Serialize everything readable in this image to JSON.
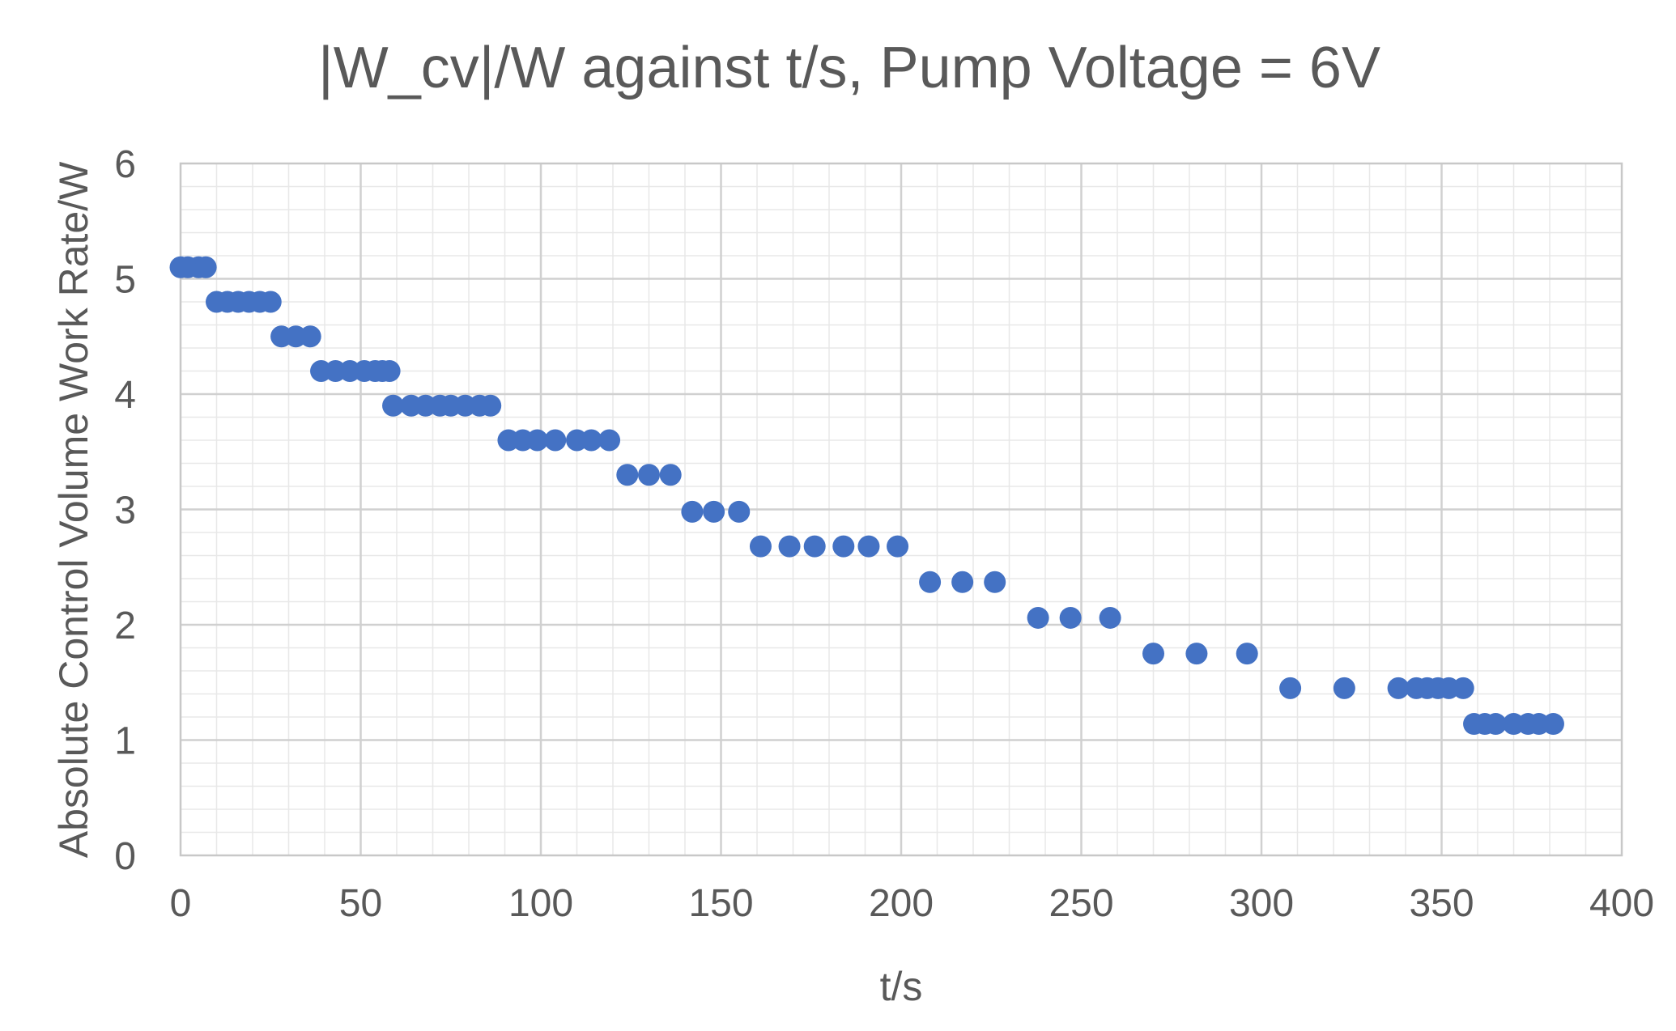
{
  "chart_data": {
    "type": "scatter",
    "title": "|W_cv|/W against t/s, Pump Voltage = 6V",
    "xlabel": "t/s",
    "ylabel": "Absolute Control Volume Work Rate/W",
    "xlim": [
      0,
      400
    ],
    "ylim": [
      0,
      6
    ],
    "xticks": [
      "0",
      "50",
      "100",
      "150",
      "200",
      "250",
      "300",
      "350",
      "400"
    ],
    "yticks": [
      "0",
      "1",
      "2",
      "3",
      "4",
      "5",
      "6"
    ],
    "grid": true,
    "legend": "none",
    "color": "#4472c4",
    "series": [
      {
        "name": "|W_cv|/W",
        "points": [
          [
            0,
            5.1
          ],
          [
            2,
            5.1
          ],
          [
            5,
            5.1
          ],
          [
            7,
            5.1
          ],
          [
            10,
            4.8
          ],
          [
            13,
            4.8
          ],
          [
            16,
            4.8
          ],
          [
            19,
            4.8
          ],
          [
            22,
            4.8
          ],
          [
            25,
            4.8
          ],
          [
            28,
            4.5
          ],
          [
            32,
            4.5
          ],
          [
            36,
            4.5
          ],
          [
            39,
            4.2
          ],
          [
            43,
            4.2
          ],
          [
            47,
            4.2
          ],
          [
            51,
            4.2
          ],
          [
            54,
            4.2
          ],
          [
            56,
            4.2
          ],
          [
            58,
            4.2
          ],
          [
            59,
            3.9
          ],
          [
            64,
            3.9
          ],
          [
            68,
            3.9
          ],
          [
            72,
            3.9
          ],
          [
            75,
            3.9
          ],
          [
            79,
            3.9
          ],
          [
            83,
            3.9
          ],
          [
            86,
            3.9
          ],
          [
            91,
            3.6
          ],
          [
            95,
            3.6
          ],
          [
            99,
            3.6
          ],
          [
            104,
            3.6
          ],
          [
            110,
            3.6
          ],
          [
            114,
            3.6
          ],
          [
            119,
            3.6
          ],
          [
            124,
            3.3
          ],
          [
            130,
            3.3
          ],
          [
            136,
            3.3
          ],
          [
            142,
            2.98
          ],
          [
            148,
            2.98
          ],
          [
            155,
            2.98
          ],
          [
            161,
            2.68
          ],
          [
            169,
            2.68
          ],
          [
            176,
            2.68
          ],
          [
            184,
            2.68
          ],
          [
            191,
            2.68
          ],
          [
            199,
            2.68
          ],
          [
            208,
            2.37
          ],
          [
            217,
            2.37
          ],
          [
            226,
            2.37
          ],
          [
            238,
            2.06
          ],
          [
            247,
            2.06
          ],
          [
            258,
            2.06
          ],
          [
            270,
            1.75
          ],
          [
            282,
            1.75
          ],
          [
            296,
            1.75
          ],
          [
            308,
            1.45
          ],
          [
            323,
            1.45
          ],
          [
            338,
            1.45
          ],
          [
            343,
            1.45
          ],
          [
            346,
            1.45
          ],
          [
            349,
            1.45
          ],
          [
            352,
            1.45
          ],
          [
            356,
            1.45
          ],
          [
            359,
            1.14
          ],
          [
            362,
            1.14
          ],
          [
            365,
            1.14
          ],
          [
            370,
            1.14
          ],
          [
            374,
            1.14
          ],
          [
            377,
            1.14
          ],
          [
            381,
            1.14
          ]
        ]
      }
    ]
  }
}
